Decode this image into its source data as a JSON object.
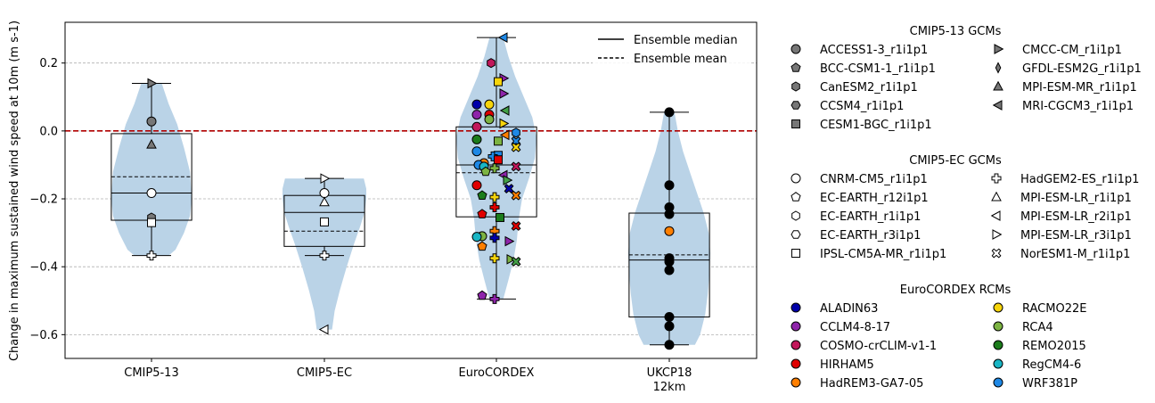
{
  "chart_data": {
    "type": "violin+box+scatter",
    "ylabel": "Change in maximum sustained wind speed at 10m (m s-1)",
    "categories": [
      "CMIP5-13",
      "CMIP5-EC",
      "EuroCORDEX",
      "UKCP18\n12km"
    ],
    "ylim": [
      -0.67,
      0.32
    ],
    "yticks": [
      "0.2",
      "0.0",
      "−0.2",
      "−0.4",
      "−0.6"
    ],
    "ytick_values": [
      0.2,
      0.0,
      -0.2,
      -0.4,
      -0.6
    ],
    "grid": "horizontal dashed",
    "zero_line": {
      "y": 0.0,
      "color": "#b00000"
    },
    "violin_color": "#bad3e7",
    "legend_lines": [
      {
        "label": "Ensemble median",
        "style": "solid"
      },
      {
        "label": "Ensemble mean",
        "style": "dashed"
      }
    ],
    "groups": [
      {
        "name": "CMIP5-13",
        "box": {
          "q1": -0.263,
          "median": -0.183,
          "q3": -0.008,
          "mean": -0.135,
          "whislo": -0.367,
          "whishi": 0.14
        },
        "violin": {
          "y": [
            0.14,
            0.08,
            0.02,
            -0.05,
            -0.12,
            -0.2,
            -0.25,
            -0.3,
            -0.35,
            -0.367
          ],
          "w": [
            0.12,
            0.2,
            0.3,
            0.38,
            0.45,
            0.47,
            0.45,
            0.38,
            0.28,
            0.2
          ]
        },
        "points": [
          {
            "y": 0.14,
            "marker": "tri-right",
            "fill": "#777777"
          },
          {
            "y": 0.028,
            "marker": "circle",
            "fill": "#777777"
          },
          {
            "y": -0.04,
            "marker": "tri-up",
            "fill": "#777777"
          },
          {
            "y": -0.183,
            "marker": "circle",
            "fill": "#ffffff"
          },
          {
            "y": -0.255,
            "marker": "hexagon",
            "fill": "#777777"
          },
          {
            "y": -0.27,
            "marker": "square",
            "fill": "#ffffff"
          },
          {
            "y": -0.367,
            "marker": "plus",
            "fill": "#ffffff"
          }
        ]
      },
      {
        "name": "CMIP5-EC",
        "box": {
          "q1": -0.34,
          "median": -0.24,
          "q3": -0.19,
          "mean": -0.295,
          "whislo": -0.367,
          "whishi": -0.14
        },
        "violin": {
          "y": [
            -0.14,
            -0.17,
            -0.2,
            -0.24,
            -0.28,
            -0.33,
            -0.4,
            -0.47,
            -0.53,
            -0.585
          ],
          "w": [
            0.46,
            0.49,
            0.49,
            0.47,
            0.42,
            0.35,
            0.26,
            0.18,
            0.12,
            0.09
          ]
        },
        "points": [
          {
            "y": -0.14,
            "marker": "tri-right",
            "fill": "#ffffff"
          },
          {
            "y": -0.183,
            "marker": "circle",
            "fill": "#ffffff"
          },
          {
            "y": -0.21,
            "marker": "tri-up",
            "fill": "#ffffff"
          },
          {
            "y": -0.268,
            "marker": "square",
            "fill": "#ffffff"
          },
          {
            "y": -0.367,
            "marker": "plus",
            "fill": "#ffffff"
          },
          {
            "y": -0.585,
            "marker": "tri-left",
            "fill": "#ffffff"
          }
        ]
      },
      {
        "name": "EuroCORDEX",
        "box": {
          "q1": -0.253,
          "median": -0.1,
          "q3": 0.012,
          "mean": -0.123,
          "whislo": -0.495,
          "whishi": 0.275
        },
        "violin": {
          "y": [
            0.275,
            0.22,
            0.16,
            0.1,
            0.04,
            -0.02,
            -0.08,
            -0.14,
            -0.2,
            -0.26,
            -0.32,
            -0.38,
            -0.44,
            -0.495
          ],
          "w": [
            0.08,
            0.14,
            0.22,
            0.32,
            0.42,
            0.47,
            0.45,
            0.38,
            0.3,
            0.26,
            0.24,
            0.2,
            0.14,
            0.08
          ]
        },
        "points": [
          {
            "y": 0.275,
            "marker": "tri-left",
            "fill": "#1e88e5",
            "dx": 8
          },
          {
            "y": 0.2,
            "marker": "hexagon",
            "fill": "#c2185b",
            "dx": -6
          },
          {
            "y": 0.155,
            "marker": "tri-right",
            "fill": "#8e24aa",
            "dx": 8
          },
          {
            "y": 0.145,
            "marker": "square",
            "fill": "#f6d40b",
            "dx": 2
          },
          {
            "y": 0.11,
            "marker": "tri-right",
            "fill": "#8e24aa",
            "dx": 8
          },
          {
            "y": 0.078,
            "marker": "circle",
            "fill": "#0000aa",
            "dx": -22
          },
          {
            "y": 0.078,
            "marker": "circle",
            "fill": "#f6d40b",
            "dx": -8
          },
          {
            "y": 0.06,
            "marker": "tri-left",
            "fill": "#43a047",
            "dx": 10
          },
          {
            "y": 0.048,
            "marker": "circle",
            "fill": "#8e24aa",
            "dx": -22
          },
          {
            "y": 0.048,
            "marker": "circle",
            "fill": "#e00000",
            "dx": -8
          },
          {
            "y": 0.034,
            "marker": "circle",
            "fill": "#7cb342",
            "dx": -8
          },
          {
            "y": 0.022,
            "marker": "tri-right",
            "fill": "#f6d40b",
            "dx": 8
          },
          {
            "y": 0.012,
            "marker": "circle",
            "fill": "#c2185b",
            "dx": -22
          },
          {
            "y": -0.005,
            "marker": "hexagon",
            "fill": "#1e88e5",
            "dx": 22
          },
          {
            "y": -0.012,
            "marker": "tri-left",
            "fill": "#ff7f00",
            "dx": 10
          },
          {
            "y": -0.025,
            "marker": "circle",
            "fill": "#1b7c1b",
            "dx": -22
          },
          {
            "y": -0.03,
            "marker": "square",
            "fill": "#7cb342",
            "dx": 2
          },
          {
            "y": -0.03,
            "marker": "cross",
            "fill": "#1e88e5",
            "dx": 22
          },
          {
            "y": -0.048,
            "marker": "cross",
            "fill": "#f6d40b",
            "dx": 22
          },
          {
            "y": -0.06,
            "marker": "circle",
            "fill": "#1e88e5",
            "dx": -22
          },
          {
            "y": -0.072,
            "marker": "square",
            "fill": "#1e88e5",
            "dx": 2
          },
          {
            "y": -0.075,
            "marker": "plus",
            "fill": "#1e88e5",
            "dx": -4
          },
          {
            "y": -0.085,
            "marker": "square",
            "fill": "#e00000",
            "dx": 2
          },
          {
            "y": -0.095,
            "marker": "circle",
            "fill": "#ff7f00",
            "dx": -14
          },
          {
            "y": -0.1,
            "marker": "circle",
            "fill": "#1e88e5",
            "dx": -20
          },
          {
            "y": -0.105,
            "marker": "circle",
            "fill": "#19b5c4",
            "dx": -14
          },
          {
            "y": -0.105,
            "marker": "cross",
            "fill": "#c2185b",
            "dx": 22
          },
          {
            "y": -0.11,
            "marker": "plus",
            "fill": "#7cb342",
            "dx": -2
          },
          {
            "y": -0.12,
            "marker": "pentagon",
            "fill": "#7cb342",
            "dx": -12
          },
          {
            "y": -0.13,
            "marker": "tri-left",
            "fill": "#8e24aa",
            "dx": 8
          },
          {
            "y": -0.145,
            "marker": "tri-right",
            "fill": "#43a047",
            "dx": 12
          },
          {
            "y": -0.16,
            "marker": "circle",
            "fill": "#e00000",
            "dx": -22
          },
          {
            "y": -0.17,
            "marker": "cross",
            "fill": "#0000aa",
            "dx": 14
          },
          {
            "y": -0.19,
            "marker": "pentagon",
            "fill": "#1b7c1b",
            "dx": -16
          },
          {
            "y": -0.19,
            "marker": "cross",
            "fill": "#ff7f00",
            "dx": 22
          },
          {
            "y": -0.195,
            "marker": "plus",
            "fill": "#f6d40b",
            "dx": -2
          },
          {
            "y": -0.225,
            "marker": "plus",
            "fill": "#e00000",
            "dx": -2
          },
          {
            "y": -0.245,
            "marker": "pentagon",
            "fill": "#e00000",
            "dx": -16
          },
          {
            "y": -0.255,
            "marker": "square",
            "fill": "#1b7c1b",
            "dx": 4
          },
          {
            "y": -0.28,
            "marker": "cross",
            "fill": "#e00000",
            "dx": 22
          },
          {
            "y": -0.295,
            "marker": "plus",
            "fill": "#ff7f00",
            "dx": -2
          },
          {
            "y": -0.31,
            "marker": "circle",
            "fill": "#7cb342",
            "dx": -16
          },
          {
            "y": -0.312,
            "marker": "circle",
            "fill": "#19b5c4",
            "dx": -22
          },
          {
            "y": -0.315,
            "marker": "plus",
            "fill": "#0000aa",
            "dx": -2
          },
          {
            "y": -0.325,
            "marker": "tri-right",
            "fill": "#8e24aa",
            "dx": 14
          },
          {
            "y": -0.34,
            "marker": "pentagon",
            "fill": "#ff7f00",
            "dx": -16
          },
          {
            "y": -0.375,
            "marker": "plus",
            "fill": "#f6d40b",
            "dx": -2
          },
          {
            "y": -0.378,
            "marker": "tri-right",
            "fill": "#7cb342",
            "dx": 16
          },
          {
            "y": -0.385,
            "marker": "cross",
            "fill": "#43a047",
            "dx": 22
          },
          {
            "y": -0.485,
            "marker": "pentagon",
            "fill": "#8e24aa",
            "dx": -16
          },
          {
            "y": -0.495,
            "marker": "plus",
            "fill": "#8e24aa",
            "dx": -2
          }
        ]
      },
      {
        "name": "UKCP18 12km",
        "box": {
          "q1": -0.548,
          "median": -0.38,
          "q3": -0.242,
          "mean": -0.365,
          "whislo": -0.63,
          "whishi": 0.055
        },
        "violin": {
          "y": [
            0.055,
            0.0,
            -0.06,
            -0.12,
            -0.18,
            -0.24,
            -0.3,
            -0.36,
            -0.42,
            -0.48,
            -0.54,
            -0.6,
            -0.63
          ],
          "w": [
            0.06,
            0.1,
            0.16,
            0.24,
            0.32,
            0.4,
            0.46,
            0.48,
            0.47,
            0.45,
            0.42,
            0.36,
            0.3
          ]
        },
        "points": [
          {
            "y": 0.055,
            "marker": "circle",
            "fill": "#000000"
          },
          {
            "y": -0.16,
            "marker": "circle",
            "fill": "#000000"
          },
          {
            "y": -0.225,
            "marker": "circle",
            "fill": "#000000"
          },
          {
            "y": -0.245,
            "marker": "circle",
            "fill": "#000000"
          },
          {
            "y": -0.295,
            "marker": "circle",
            "fill": "#ff7f00"
          },
          {
            "y": -0.375,
            "marker": "circle",
            "fill": "#000000"
          },
          {
            "y": -0.385,
            "marker": "circle",
            "fill": "#000000"
          },
          {
            "y": -0.41,
            "marker": "circle",
            "fill": "#000000"
          },
          {
            "y": -0.548,
            "marker": "circle",
            "fill": "#000000"
          },
          {
            "y": -0.575,
            "marker": "circle",
            "fill": "#000000"
          },
          {
            "y": -0.63,
            "marker": "circle",
            "fill": "#000000"
          }
        ]
      }
    ],
    "legends": [
      {
        "title": "CMIP5-13 GCMs",
        "columns": [
          [
            {
              "label": "ACCESS1-3_r1i1p1",
              "marker": "circle",
              "fill": "#777777"
            },
            {
              "label": "BCC-CSM1-1_r1i1p1",
              "marker": "pentagon",
              "fill": "#777777"
            },
            {
              "label": "CanESM2_r1i1p1",
              "marker": "hexagon",
              "fill": "#777777"
            },
            {
              "label": "CCSM4_r1i1p1",
              "marker": "hexagon2",
              "fill": "#777777"
            },
            {
              "label": "CESM1-BGC_r1i1p1",
              "marker": "square",
              "fill": "#777777"
            }
          ],
          [
            {
              "label": "CMCC-CM_r1i1p1",
              "marker": "tri-right",
              "fill": "#777777"
            },
            {
              "label": "GFDL-ESM2G_r1i1p1",
              "marker": "thin-diamond",
              "fill": "#777777"
            },
            {
              "label": "MPI-ESM-MR_r1i1p1",
              "marker": "tri-up",
              "fill": "#777777"
            },
            {
              "label": "MRI-CGCM3_r1i1p1",
              "marker": "tri-left",
              "fill": "#777777"
            }
          ]
        ]
      },
      {
        "title": "CMIP5-EC GCMs",
        "columns": [
          [
            {
              "label": "CNRM-CM5_r1i1p1",
              "marker": "circle",
              "fill": "#ffffff"
            },
            {
              "label": "EC-EARTH_r12i1p1",
              "marker": "pentagon",
              "fill": "#ffffff"
            },
            {
              "label": "EC-EARTH_r1i1p1",
              "marker": "hexagon",
              "fill": "#ffffff"
            },
            {
              "label": "EC-EARTH_r3i1p1",
              "marker": "hexagon2",
              "fill": "#ffffff"
            },
            {
              "label": "IPSL-CM5A-MR_r1i1p1",
              "marker": "square",
              "fill": "#ffffff"
            }
          ],
          [
            {
              "label": "HadGEM2-ES_r1i1p1",
              "marker": "plus",
              "fill": "#ffffff"
            },
            {
              "label": "MPI-ESM-LR_r1i1p1",
              "marker": "tri-up",
              "fill": "#ffffff"
            },
            {
              "label": "MPI-ESM-LR_r2i1p1",
              "marker": "tri-left",
              "fill": "#ffffff"
            },
            {
              "label": "MPI-ESM-LR_r3i1p1",
              "marker": "tri-right",
              "fill": "#ffffff"
            },
            {
              "label": "NorESM1-M_r1i1p1",
              "marker": "cross",
              "fill": "#ffffff"
            }
          ]
        ]
      },
      {
        "title": "EuroCORDEX RCMs",
        "columns": [
          [
            {
              "label": "ALADIN63",
              "marker": "circle",
              "fill": "#0000aa"
            },
            {
              "label": "CCLM4-8-17",
              "marker": "circle",
              "fill": "#8e24aa"
            },
            {
              "label": "COSMO-crCLIM-v1-1",
              "marker": "circle",
              "fill": "#c2185b"
            },
            {
              "label": "HIRHAM5",
              "marker": "circle",
              "fill": "#e00000"
            },
            {
              "label": "HadREM3-GA7-05",
              "marker": "circle",
              "fill": "#ff7f00"
            }
          ],
          [
            {
              "label": "RACMO22E",
              "marker": "circle",
              "fill": "#f6d40b"
            },
            {
              "label": "RCA4",
              "marker": "circle",
              "fill": "#7cb342"
            },
            {
              "label": "REMO2015",
              "marker": "circle",
              "fill": "#1b7c1b"
            },
            {
              "label": "RegCM4-6",
              "marker": "circle",
              "fill": "#19b5c4"
            },
            {
              "label": "WRF381P",
              "marker": "circle",
              "fill": "#1e88e5"
            }
          ]
        ]
      }
    ]
  }
}
